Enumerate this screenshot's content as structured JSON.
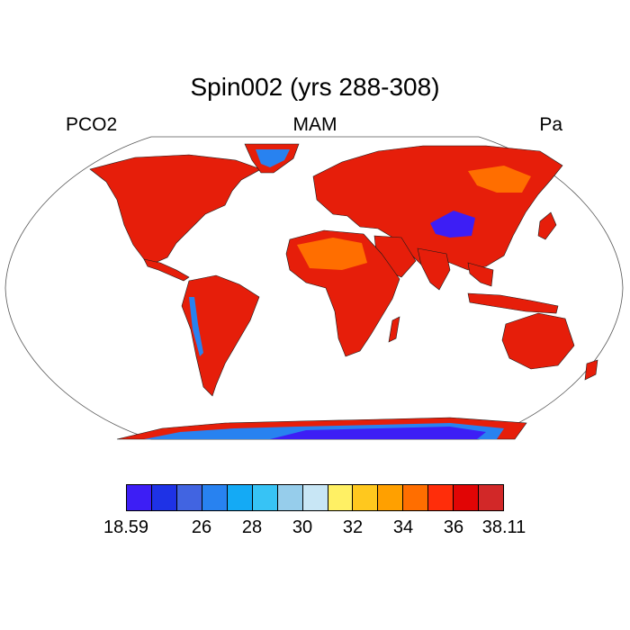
{
  "title": "Spin002 (yrs 288-308)",
  "left_label": "PCO2",
  "center_label": "MAM",
  "right_label": "Pa",
  "colorbar": {
    "colors": [
      "#3d1ef5",
      "#1e32e6",
      "#4164e1",
      "#2882f0",
      "#14aaf5",
      "#37c3f5",
      "#96cdeb",
      "#c8e6f5",
      "#fff064",
      "#ffc81e",
      "#ffa000",
      "#ff6e00",
      "#ff2d0a",
      "#e10505",
      "#d22828"
    ],
    "labels": [
      "18.59",
      "26",
      "28",
      "30",
      "32",
      "34",
      "36",
      "38.11"
    ]
  },
  "colors": {
    "land_base": "#e61e0a",
    "land_hot": "#ff6e00",
    "ice": "#3d1ef5",
    "ice_edge": "#2882f0",
    "coast": "#1a1a1a"
  }
}
